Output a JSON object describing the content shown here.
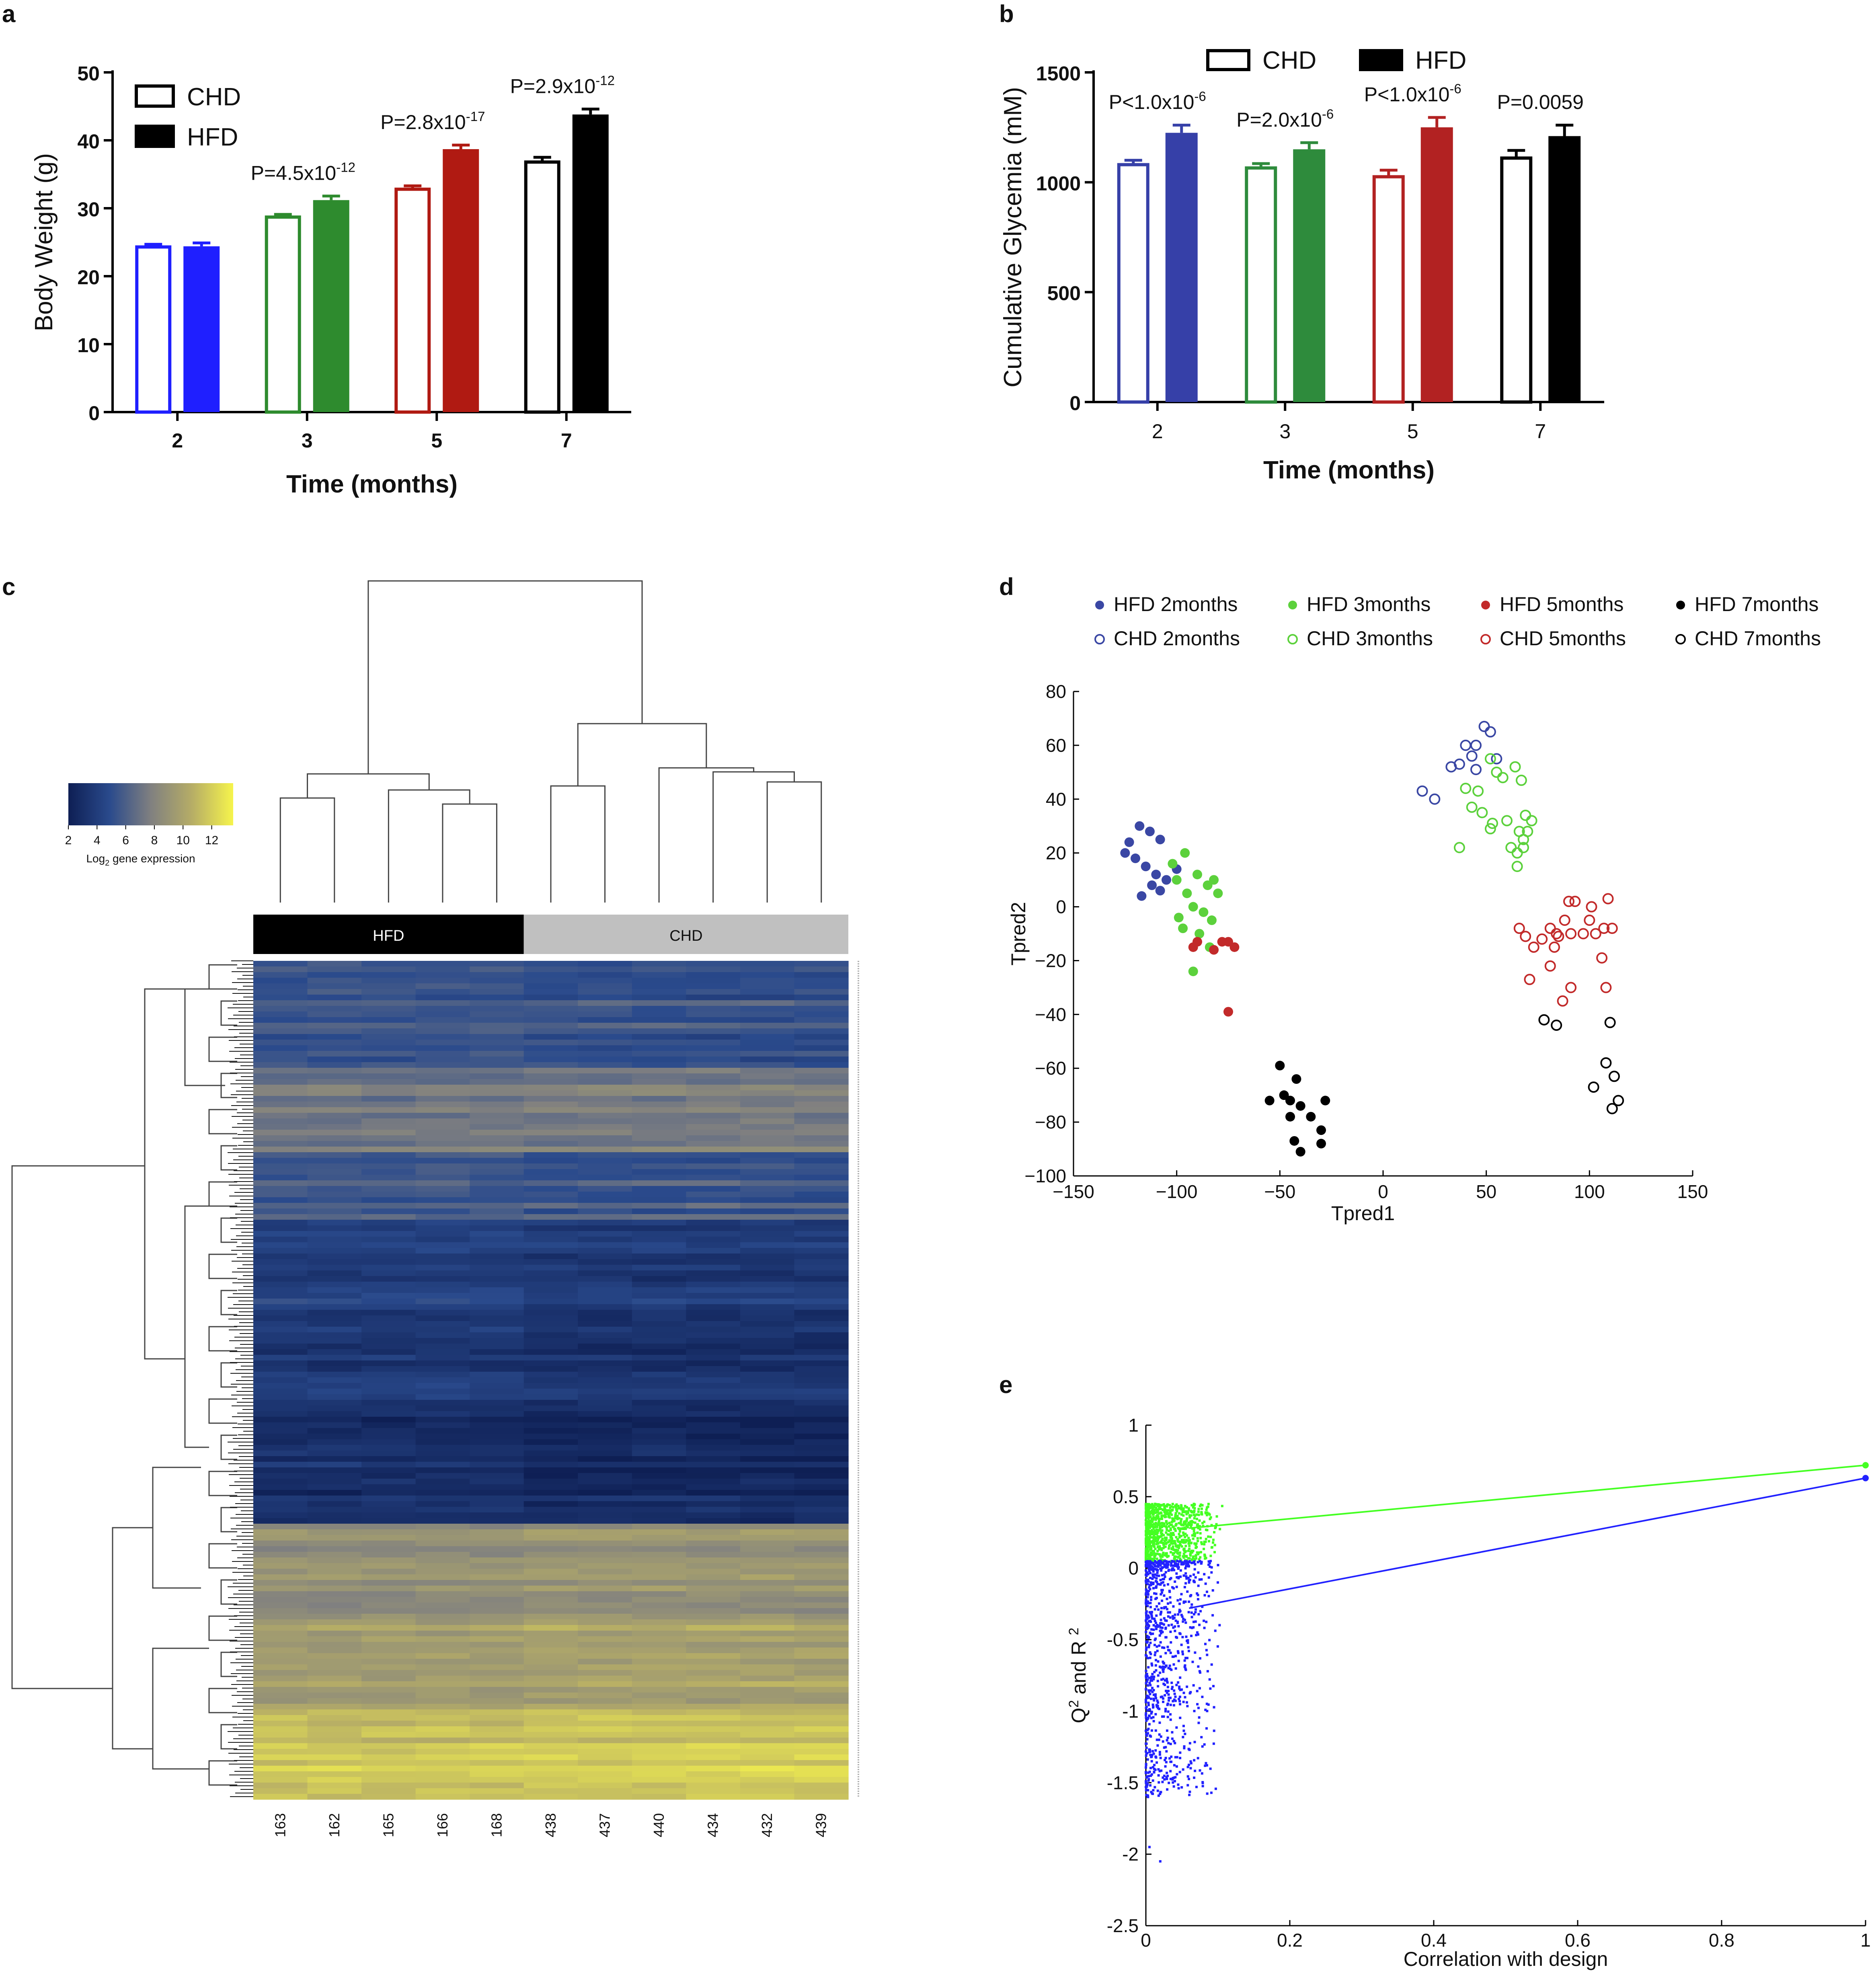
{
  "colors": {
    "blue": "#1f1fff",
    "green": "#2e8b2e",
    "red": "#b01a12",
    "black": "#000000",
    "glyBlue": "#3640a8",
    "glyGreen": "#2e8b3c",
    "glyRed": "#b22222",
    "pcaBlue": "#3a47a4",
    "pcaGreen": "#5cd13c",
    "pcaRed": "#c22a2a",
    "e_green": "#44ff22",
    "e_blue": "#2222ff"
  },
  "chart_data": [
    {
      "panel": "a",
      "type": "bar",
      "xlabel": "Time (months)",
      "ylabel": "Body Weight (g)",
      "ylim": [
        0,
        50
      ],
      "yticks": [
        "0",
        "10",
        "20",
        "30",
        "40",
        "50"
      ],
      "categories": [
        "2",
        "3",
        "5",
        "7"
      ],
      "series": [
        {
          "name": "CHD",
          "style": "open",
          "values": [
            24.3,
            28.7,
            32.8,
            36.8
          ],
          "err": [
            0.4,
            0.4,
            0.5,
            0.7
          ]
        },
        {
          "name": "HFD",
          "style": "filled",
          "values": [
            24.4,
            31.2,
            38.7,
            43.8
          ],
          "err": [
            0.5,
            0.6,
            0.6,
            0.8
          ]
        }
      ],
      "annotations": [
        {
          "category": "3",
          "base": "P=4.5x10",
          "exp": "-12"
        },
        {
          "category": "5",
          "base": "P=2.8x10",
          "exp": "-17"
        },
        {
          "category": "7",
          "base": "P=2.9x10",
          "exp": "-12"
        }
      ],
      "legend_position": "top-left"
    },
    {
      "panel": "b",
      "type": "bar",
      "xlabel": "Time (months)",
      "ylabel": "Cumulative Glycemia (mM)",
      "ylim": [
        0,
        1500
      ],
      "yticks": [
        "0",
        "500",
        "1000",
        "1500"
      ],
      "categories": [
        "2",
        "3",
        "5",
        "7"
      ],
      "series": [
        {
          "name": "CHD",
          "style": "open",
          "values": [
            1080,
            1065,
            1025,
            1110
          ],
          "err": [
            20,
            20,
            30,
            35
          ]
        },
        {
          "name": "HFD",
          "style": "filled",
          "values": [
            1225,
            1150,
            1250,
            1210
          ],
          "err": [
            35,
            30,
            45,
            50
          ]
        }
      ],
      "annotations": [
        {
          "category": "2",
          "base": "P<1.0x10",
          "exp": "-6"
        },
        {
          "category": "3",
          "base": "P=2.0x10",
          "exp": "-6"
        },
        {
          "category": "5",
          "base": "P<1.0x10",
          "exp": "-6"
        },
        {
          "category": "7",
          "base": "P=0.0059",
          "exp": ""
        }
      ],
      "legend_position": "top"
    },
    {
      "panel": "c",
      "type": "heatmap",
      "groups": [
        "HFD",
        "CHD"
      ],
      "samples": [
        "163",
        "162",
        "165",
        "166",
        "168",
        "438",
        "437",
        "440",
        "434",
        "432",
        "439"
      ],
      "colorbar_ticks": [
        "2",
        "4",
        "6",
        "8",
        "10",
        "12"
      ],
      "colorbar_label_base": "Log",
      "colorbar_label_sub": "2",
      "colorbar_label_rest": " gene expression",
      "colorbar_range": [
        2,
        13.5
      ],
      "cluster_profile": [
        {
          "level": 5.6,
          "frac": 0.13
        },
        {
          "level": 7.3,
          "frac": 0.1
        },
        {
          "level": 5.8,
          "frac": 0.08
        },
        {
          "level": 4.3,
          "frac": 0.11
        },
        {
          "level": 3.6,
          "frac": 0.11
        },
        {
          "level": 3.1,
          "frac": 0.15
        },
        {
          "level": 8.8,
          "frac": 0.12
        },
        {
          "level": 9.8,
          "frac": 0.1
        },
        {
          "level": 11.6,
          "frac": 0.1
        }
      ]
    },
    {
      "panel": "d",
      "type": "scatter",
      "xlabel": "Tpred1",
      "ylabel": "Tpred2",
      "xlim": [
        -150,
        150
      ],
      "ylim": [
        -100,
        80
      ],
      "xticks": [
        "−150",
        "−100",
        "−50",
        "0",
        "50",
        "100",
        "150"
      ],
      "yticks": [
        "−100",
        "−80",
        "−60",
        "−40",
        "−20",
        "0",
        "20",
        "40",
        "60",
        "80"
      ],
      "series": [
        {
          "name": "HFD 2months",
          "color": "pcaBlue",
          "filled": true,
          "points": [
            [
              -125,
              20
            ],
            [
              -123,
              24
            ],
            [
              -118,
              30
            ],
            [
              -113,
              28
            ],
            [
              -108,
              25
            ],
            [
              -120,
              18
            ],
            [
              -115,
              15
            ],
            [
              -110,
              12
            ],
            [
              -105,
              10
            ],
            [
              -112,
              8
            ],
            [
              -100,
              14
            ],
            [
              -117,
              4
            ],
            [
              -108,
              6
            ]
          ]
        },
        {
          "name": "CHD 2months",
          "color": "pcaBlue",
          "filled": false,
          "points": [
            [
              19,
              43
            ],
            [
              25,
              40
            ],
            [
              33,
              52
            ],
            [
              37,
              53
            ],
            [
              40,
              60
            ],
            [
              43,
              56
            ],
            [
              45,
              60
            ],
            [
              49,
              67
            ],
            [
              52,
              65
            ],
            [
              45,
              51
            ],
            [
              55,
              55
            ]
          ]
        },
        {
          "name": "HFD 3months",
          "color": "pcaGreen",
          "filled": true,
          "points": [
            [
              -102,
              16
            ],
            [
              -96,
              20
            ],
            [
              -100,
              10
            ],
            [
              -95,
              5
            ],
            [
              -90,
              12
            ],
            [
              -85,
              8
            ],
            [
              -92,
              0
            ],
            [
              -87,
              -2
            ],
            [
              -83,
              -5
            ],
            [
              -80,
              5
            ],
            [
              -97,
              -8
            ],
            [
              -89,
              -10
            ],
            [
              -84,
              -15
            ],
            [
              -92,
              -24
            ],
            [
              -99,
              -4
            ],
            [
              -82,
              10
            ]
          ]
        },
        {
          "name": "CHD 3months",
          "color": "pcaGreen",
          "filled": false,
          "points": [
            [
              40,
              44
            ],
            [
              46,
              43
            ],
            [
              52,
              55
            ],
            [
              55,
              50
            ],
            [
              58,
              48
            ],
            [
              64,
              52
            ],
            [
              67,
              47
            ],
            [
              48,
              35
            ],
            [
              53,
              31
            ],
            [
              60,
              32
            ],
            [
              66,
              28
            ],
            [
              69,
              34
            ],
            [
              72,
              32
            ],
            [
              62,
              22
            ],
            [
              65,
              20
            ],
            [
              68,
              25
            ],
            [
              70,
              28
            ],
            [
              65,
              15
            ],
            [
              37,
              22
            ],
            [
              43,
              37
            ],
            [
              52,
              29
            ],
            [
              68,
              22
            ]
          ]
        },
        {
          "name": "HFD 5months",
          "color": "pcaRed",
          "filled": true,
          "points": [
            [
              -75,
              -13
            ],
            [
              -72,
              -15
            ],
            [
              -78,
              -13
            ],
            [
              -90,
              -13
            ],
            [
              -92,
              -15
            ],
            [
              -82,
              -16
            ],
            [
              -75,
              -39
            ]
          ]
        },
        {
          "name": "CHD 5months",
          "color": "pcaRed",
          "filled": false,
          "points": [
            [
              66,
              -8
            ],
            [
              69,
              -11
            ],
            [
              73,
              -15
            ],
            [
              77,
              -12
            ],
            [
              81,
              -8
            ],
            [
              85,
              -11
            ],
            [
              88,
              -5
            ],
            [
              90,
              2
            ],
            [
              93,
              2
            ],
            [
              97,
              -10
            ],
            [
              100,
              -5
            ],
            [
              103,
              -10
            ],
            [
              107,
              -8
            ],
            [
              111,
              -8
            ],
            [
              109,
              3
            ],
            [
              101,
              0
            ],
            [
              91,
              -10
            ],
            [
              83,
              -15
            ],
            [
              81,
              -22
            ],
            [
              87,
              -35
            ],
            [
              71,
              -27
            ],
            [
              91,
              -30
            ],
            [
              106,
              -19
            ],
            [
              108,
              -30
            ],
            [
              84,
              -10
            ]
          ]
        },
        {
          "name": "HFD 7months",
          "color": "black",
          "filled": true,
          "points": [
            [
              -55,
              -72
            ],
            [
              -50,
              -59
            ],
            [
              -45,
              -72
            ],
            [
              -40,
              -74
            ],
            [
              -42,
              -64
            ],
            [
              -35,
              -78
            ],
            [
              -28,
              -72
            ],
            [
              -30,
              -83
            ],
            [
              -45,
              -78
            ],
            [
              -43,
              -87
            ],
            [
              -40,
              -91
            ],
            [
              -30,
              -88
            ],
            [
              -48,
              -70
            ]
          ]
        },
        {
          "name": "CHD 7months",
          "color": "black",
          "filled": false,
          "points": [
            [
              78,
              -42
            ],
            [
              84,
              -44
            ],
            [
              108,
              -58
            ],
            [
              110,
              -43
            ],
            [
              112,
              -63
            ],
            [
              111,
              -75
            ],
            [
              114,
              -72
            ],
            [
              102,
              -67
            ]
          ]
        }
      ]
    },
    {
      "panel": "e",
      "type": "scatter",
      "xlabel": "Correlation with design",
      "ylabel_base": "Q",
      "ylabel_sup1": "2",
      "ylabel_mid": " and R ",
      "ylabel_sup2": "2",
      "xlim": [
        0,
        1
      ],
      "ylim": [
        -2.5,
        1
      ],
      "xticks": [
        "0",
        "0.2",
        "0.4",
        "0.6",
        "0.8",
        "1"
      ],
      "yticks": [
        "-2.5",
        "-2",
        "-1.5",
        "-1",
        "-0.5",
        "0",
        "0.5",
        "1"
      ],
      "series": [
        {
          "name": "R2",
          "color": "e_green",
          "cloud_x_max": 0.06,
          "cloud_y": [
            0.05,
            0.45
          ],
          "line_from": [
            0.06,
            0.28
          ],
          "line_to": [
            1.0,
            0.72
          ]
        },
        {
          "name": "Q2",
          "color": "e_blue",
          "cloud_x_max": 0.06,
          "cloud_y": [
            -1.6,
            0.05
          ],
          "line_from": [
            0.06,
            -0.28
          ],
          "line_to": [
            1.0,
            0.63
          ]
        }
      ]
    }
  ]
}
